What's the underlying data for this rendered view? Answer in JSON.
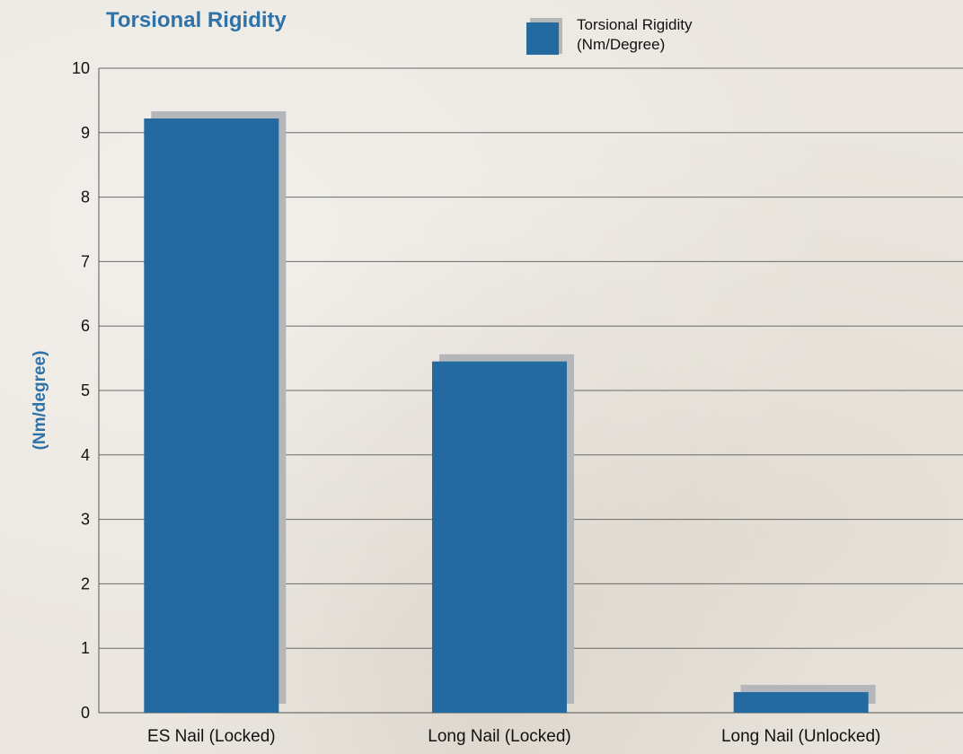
{
  "chart_data": {
    "type": "bar",
    "title": "Torsional Rigidity",
    "ylabel": "(Nm/degree)",
    "xlabel": "",
    "categories": [
      "ES Nail (Locked)",
      "Long Nail (Locked)",
      "Long Nail (Unlocked)"
    ],
    "series": [
      {
        "name_lines": [
          "Torsional Rigidity",
          "(Nm/Degree)"
        ],
        "values": [
          9.22,
          5.45,
          0.32
        ],
        "color": "#236aa0",
        "shadow_color": "#b4b6b9"
      }
    ],
    "ylim": [
      0,
      10
    ],
    "yticks": [
      "0",
      "1",
      "2",
      "3",
      "4",
      "5",
      "6",
      "7",
      "8",
      "9",
      "10"
    ],
    "grid": true,
    "legend_position": "top"
  }
}
